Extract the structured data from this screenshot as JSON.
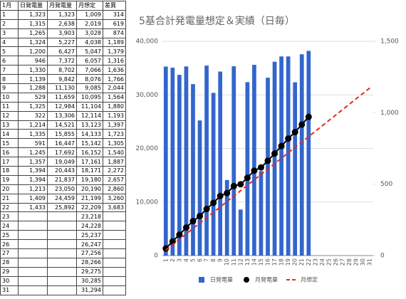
{
  "table": {
    "header": [
      "1月",
      "日発電量",
      "月発電量",
      "月想定",
      "差異"
    ],
    "rows": [
      [
        "1",
        "1,323",
        "1,323",
        "1,009",
        "314"
      ],
      [
        "2",
        "1,315",
        "2,638",
        "2,019",
        "619"
      ],
      [
        "3",
        "1,265",
        "3,903",
        "3,028",
        "874"
      ],
      [
        "4",
        "1,324",
        "5,227",
        "4,038",
        "1,189"
      ],
      [
        "5",
        "1,200",
        "6,427",
        "5,047",
        "1,379"
      ],
      [
        "6",
        "946",
        "7,372",
        "6,057",
        "1,316"
      ],
      [
        "7",
        "1,330",
        "8,702",
        "7,066",
        "1,636"
      ],
      [
        "8",
        "1,139",
        "9,842",
        "8,076",
        "1,766"
      ],
      [
        "9",
        "1,288",
        "11,130",
        "9,085",
        "2,044"
      ],
      [
        "10",
        "529",
        "11,659",
        "10,095",
        "1,564"
      ],
      [
        "11",
        "1,325",
        "12,984",
        "11,104",
        "1,880"
      ],
      [
        "12",
        "322",
        "13,306",
        "12,114",
        "1,193"
      ],
      [
        "13",
        "1,214",
        "14,521",
        "13,123",
        "1,397"
      ],
      [
        "14",
        "1,335",
        "15,855",
        "14,133",
        "1,723"
      ],
      [
        "15",
        "591",
        "16,447",
        "15,142",
        "1,305"
      ],
      [
        "16",
        "1,245",
        "17,692",
        "16,152",
        "1,540"
      ],
      [
        "17",
        "1,357",
        "19,049",
        "17,161",
        "1,887"
      ],
      [
        "18",
        "1,394",
        "20,443",
        "18,171",
        "2,272"
      ],
      [
        "19",
        "1,394",
        "21,837",
        "19,180",
        "2,657"
      ],
      [
        "20",
        "1,213",
        "23,050",
        "20,190",
        "2,860"
      ],
      [
        "21",
        "1,409",
        "24,459",
        "21,199",
        "3,260"
      ],
      [
        "22",
        "1,433",
        "25,892",
        "22,209",
        "3,683"
      ],
      [
        "23",
        null,
        null,
        "23,218",
        null
      ],
      [
        "24",
        null,
        null,
        "24,228",
        null
      ],
      [
        "25",
        null,
        null,
        "25,237",
        null
      ],
      [
        "26",
        null,
        null,
        "26,247",
        null
      ],
      [
        "27",
        null,
        null,
        "27,256",
        null
      ],
      [
        "28",
        null,
        null,
        "28,266",
        null
      ],
      [
        "29",
        null,
        null,
        "29,275",
        null
      ],
      [
        "30",
        null,
        null,
        "30,285",
        null
      ],
      [
        "31",
        null,
        null,
        "31,294",
        null
      ]
    ]
  },
  "chart_data": {
    "type": "combo",
    "title": "5基合計発電量想定＆実績（日毎）",
    "categories": [
      "1",
      "2",
      "3",
      "4",
      "5",
      "6",
      "7",
      "8",
      "9",
      "10",
      "11",
      "12",
      "13",
      "14",
      "15",
      "16",
      "17",
      "18",
      "19",
      "20",
      "21",
      "22",
      "23",
      "24",
      "25",
      "26",
      "27",
      "28",
      "29",
      "30",
      "31"
    ],
    "series": [
      {
        "name": "日発電量",
        "type": "bar",
        "axis": "y2",
        "color": "#3366cc",
        "values": [
          1323,
          1315,
          1265,
          1324,
          1200,
          946,
          1330,
          1139,
          1288,
          529,
          1325,
          322,
          1214,
          1335,
          591,
          1245,
          1357,
          1394,
          1394,
          1213,
          1409,
          1433,
          null,
          null,
          null,
          null,
          null,
          null,
          null,
          null,
          null
        ]
      },
      {
        "name": "月発電量",
        "type": "line",
        "color": "#000000",
        "markers": true,
        "values": [
          1323,
          2638,
          3903,
          5227,
          6427,
          7372,
          8702,
          9842,
          11130,
          11659,
          12984,
          13306,
          14521,
          15855,
          16447,
          17692,
          19049,
          20443,
          21837,
          23050,
          24459,
          25892,
          null,
          null,
          null,
          null,
          null,
          null,
          null,
          null,
          null
        ]
      },
      {
        "name": "月想定",
        "type": "line",
        "color": "#e8281e",
        "dashed": true,
        "values": [
          1009,
          2019,
          3028,
          4038,
          5047,
          6057,
          7066,
          8076,
          9085,
          10095,
          11104,
          12114,
          13123,
          14133,
          15142,
          16152,
          17161,
          18171,
          19180,
          20190,
          21199,
          22209,
          23218,
          24228,
          25237,
          26247,
          27256,
          28266,
          29275,
          30285,
          31294
        ]
      }
    ],
    "ylim": [
      0,
      40000
    ],
    "yticks": [
      0,
      {
        "value": 10000,
        "label": "10,000"
      },
      {
        "value": 20000,
        "label": "20,000"
      },
      {
        "value": 30000,
        "label": "30,000"
      },
      {
        "value": 40000,
        "label": "40,000"
      }
    ],
    "y2lim": [
      0,
      1500
    ],
    "y2ticks": [
      0,
      500,
      {
        "value": 1000,
        "label": "1,000"
      },
      {
        "value": 1500,
        "label": "1,500"
      }
    ],
    "grid": true,
    "legend": "bottom"
  }
}
